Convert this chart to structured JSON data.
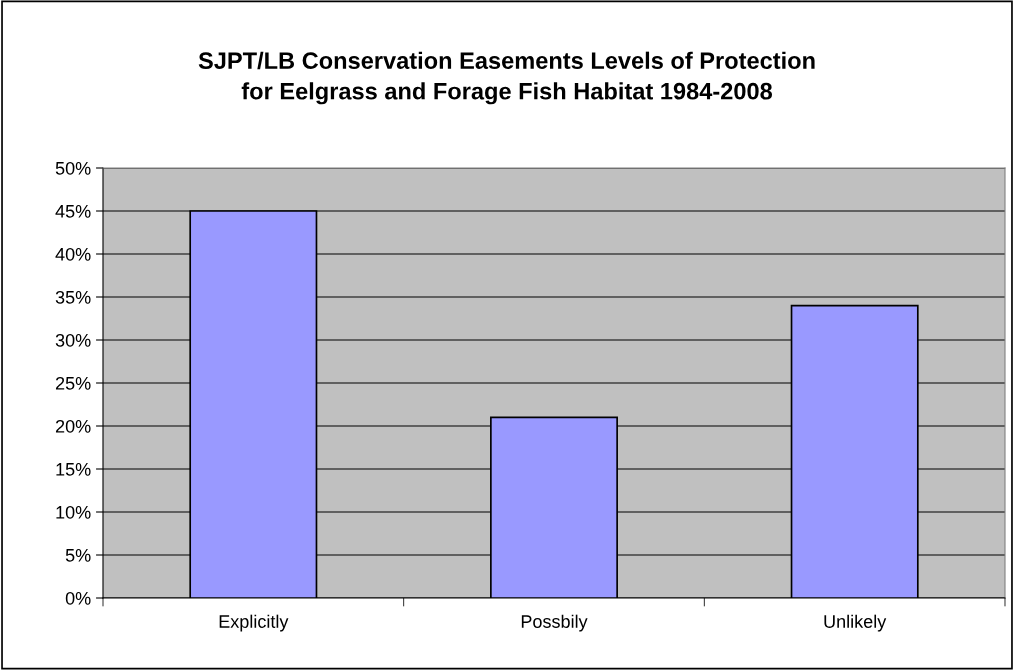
{
  "chart_data": {
    "type": "bar",
    "title": "SJPT/LB Conservation Easements Levels of Protection\nfor Eelgrass and Forage Fish Habitat 1984-2008",
    "categories": [
      "Explicitly",
      "Possbily",
      "Unlikely"
    ],
    "values": [
      45,
      21,
      34
    ],
    "color": "#9999ff",
    "ylim": [
      0,
      50
    ],
    "yticks": [
      {
        "value": 0,
        "label": "0%"
      },
      {
        "value": 5,
        "label": "5%"
      },
      {
        "value": 10,
        "label": "10%"
      },
      {
        "value": 15,
        "label": "15%"
      },
      {
        "value": 20,
        "label": "20%"
      },
      {
        "value": 25,
        "label": "25%"
      },
      {
        "value": 30,
        "label": "30%"
      },
      {
        "value": 35,
        "label": "35%"
      },
      {
        "value": 40,
        "label": "40%"
      },
      {
        "value": 45,
        "label": "45%"
      },
      {
        "value": 50,
        "label": "50%"
      }
    ],
    "grid": "y",
    "legend": false
  }
}
